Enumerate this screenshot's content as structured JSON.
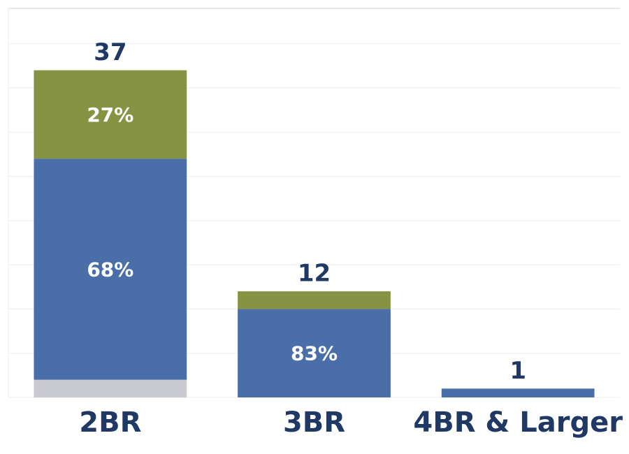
{
  "chart_data": {
    "type": "stacked_bar",
    "categories": [
      "2BR",
      "3BR",
      "4BR & Larger"
    ],
    "series": [
      {
        "color": "#c8cad0",
        "values": [
          2,
          0,
          0
        ],
        "share_labels": [
          null,
          null,
          null
        ]
      },
      {
        "color": "#4a6fa8",
        "values": [
          25,
          10,
          1
        ],
        "share_labels": [
          "68%",
          "83%",
          null
        ]
      },
      {
        "color": "#869342",
        "values": [
          10,
          2,
          0
        ],
        "share_labels": [
          "27%",
          null,
          null
        ]
      }
    ],
    "totals": [
      37,
      12,
      1
    ],
    "ylim": [
      0,
      44
    ],
    "yticks": [
      0,
      5,
      10,
      15,
      20,
      25,
      30,
      35,
      40
    ],
    "grid": true
  }
}
